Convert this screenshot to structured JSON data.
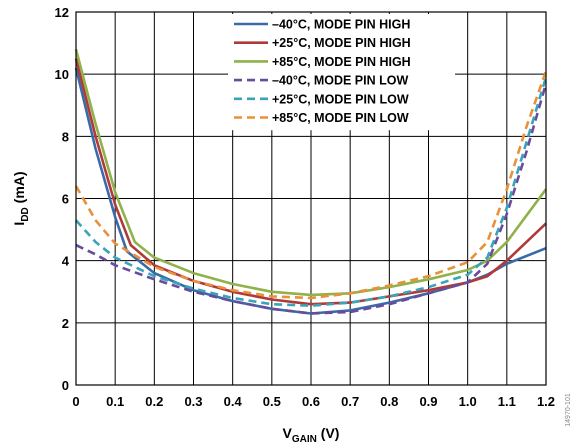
{
  "chart_data": {
    "type": "line",
    "xlabel": "V",
    "xlabel_sub": "GAIN",
    "xlabel_unit": " (V)",
    "ylabel": "I",
    "ylabel_sub": "DD",
    "ylabel_unit": " (mA)",
    "xlim": [
      0,
      1.2
    ],
    "ylim": [
      0,
      12
    ],
    "x_ticks": [
      "0",
      "0.1",
      "0.2",
      "0.3",
      "0.4",
      "0.5",
      "0.6",
      "0.7",
      "0.8",
      "0.9",
      "1.0",
      "1.1",
      "1.2"
    ],
    "y_ticks": [
      "0",
      "2",
      "4",
      "6",
      "8",
      "10",
      "12"
    ],
    "grid": true,
    "legend_position": "top-right",
    "figure_id": "14970-101",
    "series": [
      {
        "name": "–40°C, MODE PIN HIGH",
        "color": "#3a6aa8",
        "dash": "solid",
        "points": [
          [
            0,
            10.2
          ],
          [
            0.05,
            7.6
          ],
          [
            0.1,
            5.4
          ],
          [
            0.13,
            4.3
          ],
          [
            0.2,
            3.6
          ],
          [
            0.3,
            3.05
          ],
          [
            0.4,
            2.7
          ],
          [
            0.5,
            2.45
          ],
          [
            0.6,
            2.3
          ],
          [
            0.7,
            2.4
          ],
          [
            0.8,
            2.65
          ],
          [
            0.9,
            2.95
          ],
          [
            1.0,
            3.3
          ],
          [
            1.05,
            3.55
          ],
          [
            1.1,
            3.9
          ],
          [
            1.2,
            4.4
          ]
        ]
      },
      {
        "name": "+25°C, MODE PIN HIGH",
        "color": "#b03a3a",
        "dash": "solid",
        "points": [
          [
            0,
            10.5
          ],
          [
            0.05,
            8.0
          ],
          [
            0.1,
            5.8
          ],
          [
            0.14,
            4.5
          ],
          [
            0.2,
            3.85
          ],
          [
            0.3,
            3.35
          ],
          [
            0.4,
            3.0
          ],
          [
            0.5,
            2.75
          ],
          [
            0.6,
            2.6
          ],
          [
            0.7,
            2.65
          ],
          [
            0.8,
            2.85
          ],
          [
            0.9,
            3.05
          ],
          [
            1.0,
            3.3
          ],
          [
            1.05,
            3.5
          ],
          [
            1.1,
            4.0
          ],
          [
            1.2,
            5.2
          ]
        ]
      },
      {
        "name": "+85°C, MODE PIN HIGH",
        "color": "#8fb24a",
        "dash": "solid",
        "points": [
          [
            0,
            10.8
          ],
          [
            0.05,
            8.4
          ],
          [
            0.1,
            6.2
          ],
          [
            0.15,
            4.6
          ],
          [
            0.2,
            4.1
          ],
          [
            0.3,
            3.6
          ],
          [
            0.4,
            3.25
          ],
          [
            0.5,
            3.0
          ],
          [
            0.6,
            2.9
          ],
          [
            0.7,
            2.95
          ],
          [
            0.8,
            3.15
          ],
          [
            0.9,
            3.4
          ],
          [
            1.0,
            3.7
          ],
          [
            1.05,
            4.0
          ],
          [
            1.1,
            4.6
          ],
          [
            1.2,
            6.3
          ]
        ]
      },
      {
        "name": "–40°C, MODE PIN LOW",
        "color": "#6a4a9c",
        "dash": "dashed",
        "points": [
          [
            0,
            4.5
          ],
          [
            0.05,
            4.2
          ],
          [
            0.1,
            3.85
          ],
          [
            0.2,
            3.4
          ],
          [
            0.3,
            3.0
          ],
          [
            0.4,
            2.7
          ],
          [
            0.5,
            2.45
          ],
          [
            0.6,
            2.3
          ],
          [
            0.7,
            2.35
          ],
          [
            0.8,
            2.6
          ],
          [
            0.9,
            2.95
          ],
          [
            1.0,
            3.3
          ],
          [
            1.05,
            3.9
          ],
          [
            1.1,
            5.5
          ],
          [
            1.15,
            7.5
          ],
          [
            1.2,
            9.7
          ]
        ]
      },
      {
        "name": "+25°C, MODE PIN LOW",
        "color": "#3aa3b8",
        "dash": "dashed",
        "points": [
          [
            0,
            5.3
          ],
          [
            0.05,
            4.6
          ],
          [
            0.1,
            4.1
          ],
          [
            0.2,
            3.5
          ],
          [
            0.3,
            3.1
          ],
          [
            0.4,
            2.8
          ],
          [
            0.5,
            2.6
          ],
          [
            0.6,
            2.55
          ],
          [
            0.7,
            2.65
          ],
          [
            0.8,
            2.85
          ],
          [
            0.9,
            3.15
          ],
          [
            1.0,
            3.55
          ],
          [
            1.05,
            4.1
          ],
          [
            1.1,
            5.7
          ],
          [
            1.15,
            7.8
          ],
          [
            1.2,
            9.9
          ]
        ]
      },
      {
        "name": "+85°C, MODE PIN LOW",
        "color": "#e8913a",
        "dash": "dashed",
        "points": [
          [
            0,
            6.4
          ],
          [
            0.05,
            5.3
          ],
          [
            0.1,
            4.55
          ],
          [
            0.2,
            3.8
          ],
          [
            0.3,
            3.35
          ],
          [
            0.4,
            3.05
          ],
          [
            0.5,
            2.85
          ],
          [
            0.6,
            2.8
          ],
          [
            0.7,
            2.95
          ],
          [
            0.8,
            3.2
          ],
          [
            0.9,
            3.5
          ],
          [
            1.0,
            3.95
          ],
          [
            1.05,
            4.6
          ],
          [
            1.1,
            6.3
          ],
          [
            1.15,
            8.3
          ],
          [
            1.2,
            10.1
          ]
        ]
      }
    ]
  }
}
